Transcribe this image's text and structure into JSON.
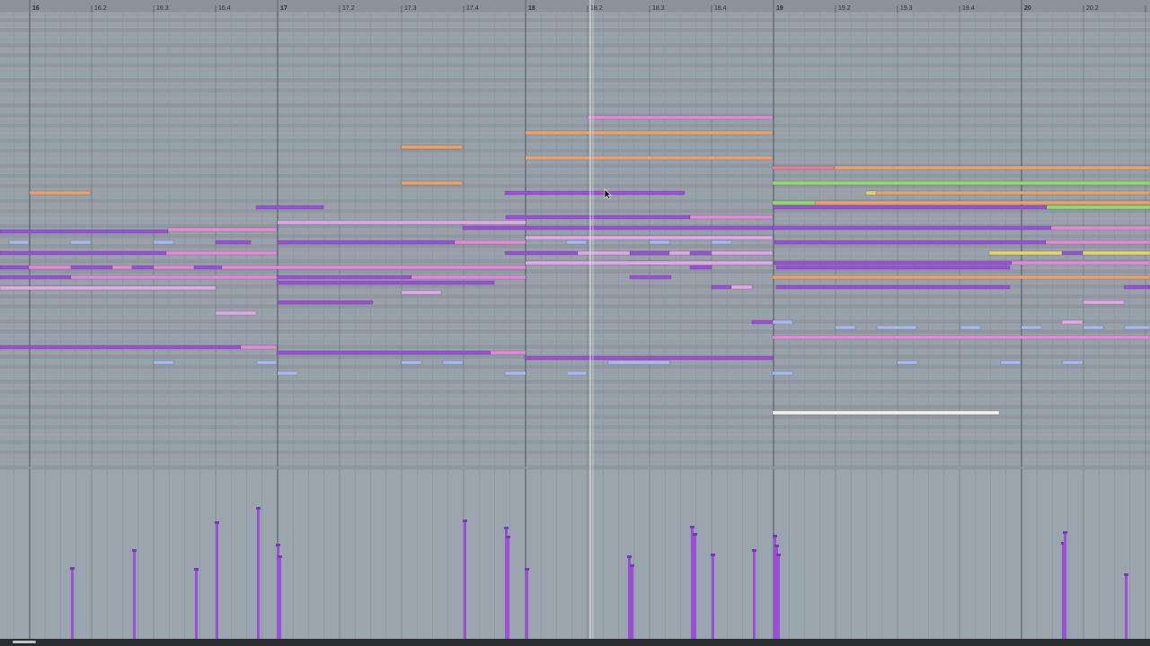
{
  "ruler": {
    "labels": [
      "16",
      "16.2",
      "16.3",
      "16.4",
      "17",
      "17.2",
      "17.3",
      "17.4",
      "18",
      "18.2",
      "18.3",
      "18.4",
      "19",
      "19.2",
      "19.3",
      "19.4",
      "20",
      "20.2"
    ]
  }
}
